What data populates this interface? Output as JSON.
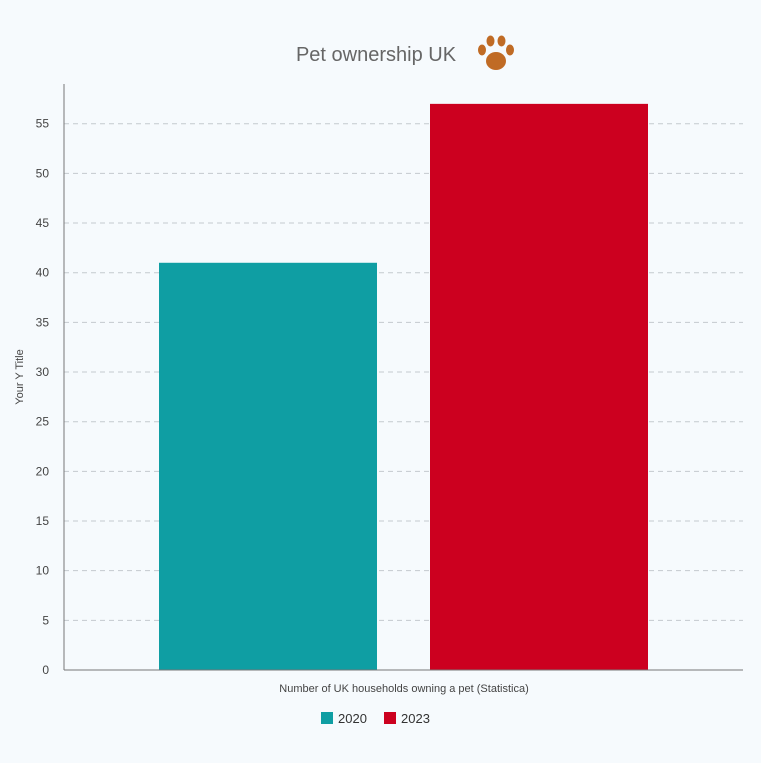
{
  "chart_data": {
    "type": "bar",
    "title": "Pet ownership UK",
    "title_icon": "paw-icon",
    "xlabel": "Number of UK households owning a pet (Statistica)",
    "ylabel": "Your Y Title",
    "ylim": [
      0,
      59
    ],
    "yticks": [
      0,
      5,
      10,
      15,
      20,
      25,
      30,
      35,
      40,
      45,
      50,
      55
    ],
    "grid": true,
    "legend_position": "bottom-center",
    "series": [
      {
        "name": "2020",
        "values": [
          41
        ],
        "color": "#0f9ea3"
      },
      {
        "name": "2023",
        "values": [
          57
        ],
        "color": "#cc001f"
      }
    ]
  },
  "colors": {
    "paw": "#c06b25"
  }
}
